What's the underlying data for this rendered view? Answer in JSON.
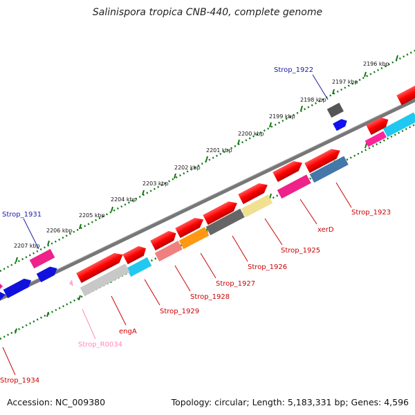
{
  "title": "Salinispora tropica CNB-440, complete genome",
  "footer": {
    "accession": "Accession: NC_009380",
    "summary": "Topology: circular; Length: 5,183,331 bp; Genes: 4,596"
  },
  "scale_labels": [
    "2196 kbp",
    "2197 kbp",
    "2198 kbp",
    "2199 kbp",
    "2200 kbp",
    "2201 kbp",
    "2202 kbp",
    "2203 kbp",
    "2204 kbp",
    "2205 kbp",
    "2206 kbp",
    "2207 kbp"
  ],
  "gene_labels": [
    "Strop_1922",
    "Strop_1923",
    "xerD",
    "Strop_1925",
    "Strop_1926",
    "Strop_1927",
    "Strop_1928",
    "Strop_1929",
    "engA",
    "Strop_R0034",
    "Strop_1931",
    "Strop_1934"
  ],
  "colors": {
    "blue_label": "#1a1aa8",
    "red_label": "#cc0000",
    "pink_label": "#ff88bb",
    "backbone": "#777777",
    "tick": "#117711"
  }
}
